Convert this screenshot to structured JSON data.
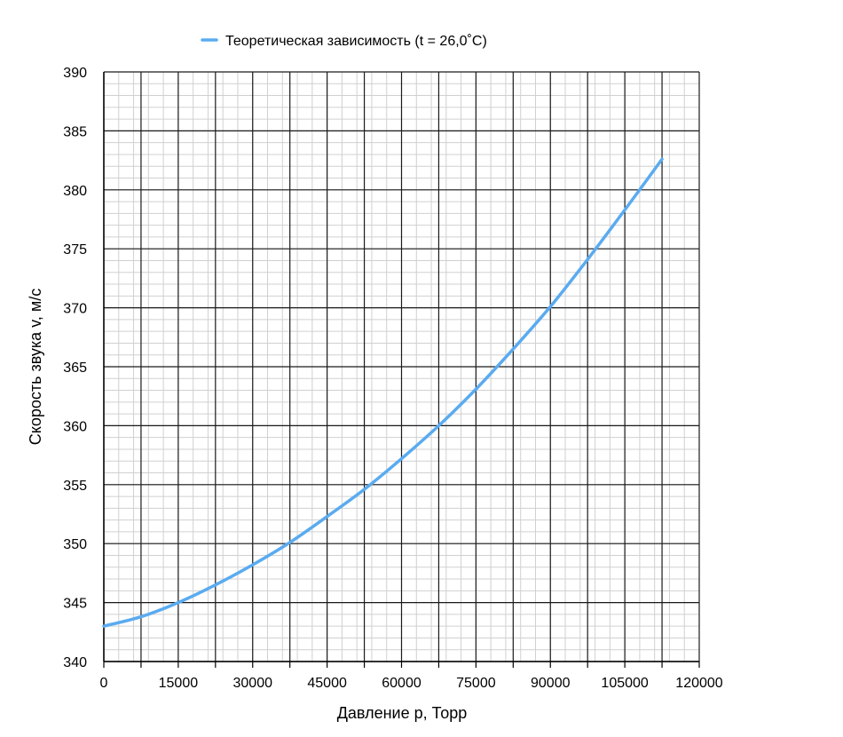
{
  "chart_data": {
    "type": "line",
    "xlabel": "Давление p, Торр",
    "ylabel": "Скорость звука v, м/с",
    "xlim": [
      0,
      120000
    ],
    "ylim": [
      340,
      390
    ],
    "x_major_step": 15000,
    "y_major_step": 5,
    "x_tick_labels": [
      "0",
      "15000",
      "30000",
      "45000",
      "60000",
      "75000",
      "90000",
      "105000",
      "120000"
    ],
    "y_tick_labels": [
      "340",
      "345",
      "350",
      "355",
      "360",
      "365",
      "370",
      "375",
      "380",
      "385",
      "390"
    ],
    "grid": true,
    "legend_position": "top-center",
    "series": [
      {
        "name": "Теоретическая зависимость (t = 26,0˚C)",
        "color": "#5aabf0",
        "x": [
          0,
          7500,
          15000,
          22500,
          30000,
          37500,
          45000,
          52500,
          60000,
          67500,
          75000,
          82500,
          90000,
          97500,
          105000,
          112500
        ],
        "y": [
          343.0,
          343.8,
          345.0,
          346.5,
          348.2,
          350.1,
          352.3,
          354.6,
          357.2,
          360.0,
          363.1,
          366.5,
          370.1,
          374.1,
          378.3,
          382.6
        ]
      }
    ]
  }
}
